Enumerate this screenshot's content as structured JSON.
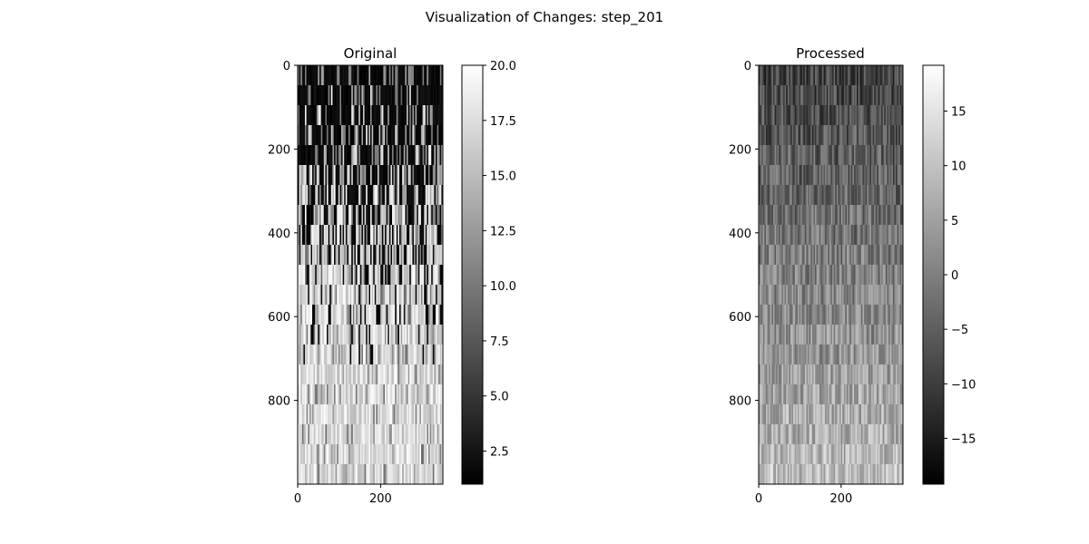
{
  "figure": {
    "title": "Visualization of Changes: step_201"
  },
  "chart_data": [
    {
      "type": "heatmap",
      "title": "Original",
      "colormap": "gray",
      "image_shape": [
        1000,
        350
      ],
      "xticks": [
        0,
        200
      ],
      "xtick_labels": [
        "0",
        "200"
      ],
      "yticks": [
        0,
        200,
        400,
        600,
        800
      ],
      "ytick_labels": [
        "0",
        "200",
        "400",
        "600",
        "800"
      ],
      "colorbar": {
        "range": [
          1.0,
          20.0
        ],
        "ticks": [
          2.5,
          5.0,
          7.5,
          10.0,
          12.5,
          15.0,
          17.5,
          20.0
        ],
        "tick_labels": [
          "2.5",
          "5.0",
          "7.5",
          "10.0",
          "12.5",
          "15.0",
          "17.5",
          "20.0"
        ]
      },
      "grid": false
    },
    {
      "type": "heatmap",
      "title": "Processed",
      "colormap": "gray",
      "image_shape": [
        1000,
        350
      ],
      "xticks": [
        0,
        200
      ],
      "xtick_labels": [
        "0",
        "200"
      ],
      "yticks": [
        0,
        200,
        400,
        600,
        800
      ],
      "ytick_labels": [
        "0",
        "200",
        "400",
        "600",
        "800"
      ],
      "colorbar": {
        "range": [
          -19.2,
          19.2
        ],
        "ticks": [
          -15,
          -10,
          -5,
          0,
          5,
          10,
          15
        ],
        "tick_labels": [
          "−15",
          "−10",
          "−5",
          "0",
          "5",
          "10",
          "15"
        ]
      },
      "grid": false
    }
  ]
}
